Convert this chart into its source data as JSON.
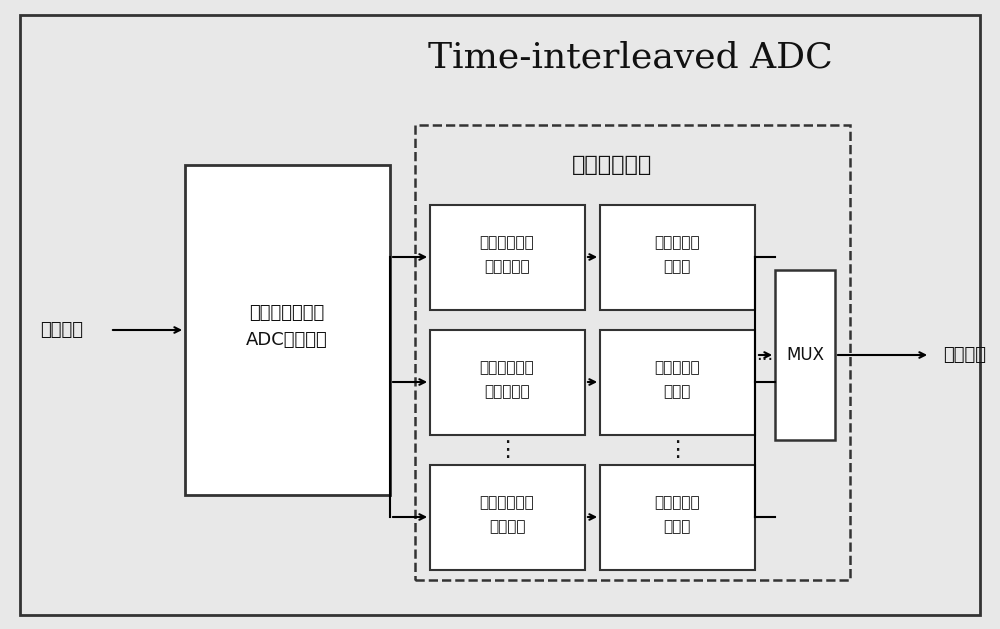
{
  "title": "Time-interleaved ADC",
  "title_fontsize": 26,
  "bg_color": "#e8e8e8",
  "outer_box_color": "#333333",
  "box_color": "#333333",
  "dashed_box_color": "#333333",
  "box_fill": "#ffffff",
  "text_color": "#111111",
  "left_label": "模拟输入",
  "right_label": "数字输出",
  "adc_block_line1": "多通道时间交替",
  "adc_block_line2": "ADC产生模块",
  "digital_cal_label": "数字校准电路",
  "mux_label": "MUX",
  "vdots": "⋮",
  "horizontal_dots": "...",
  "row1_left_line1": "增益失配，偏",
  "row1_left_line2": "置失配校准",
  "row1_right_line1": "时钟失配数",
  "row1_right_line2": "字校准",
  "row2_left_line1": "增益失配，偏",
  "row2_left_line2": "置失配校准",
  "row2_right_line1": "时钟失配数",
  "row2_right_line2": "字校准",
  "row3_left_line1": "增益失配偏置",
  "row3_left_line2": "失配校准",
  "row3_right_line1": "时钟失配数",
  "row3_right_line2": "字校准"
}
